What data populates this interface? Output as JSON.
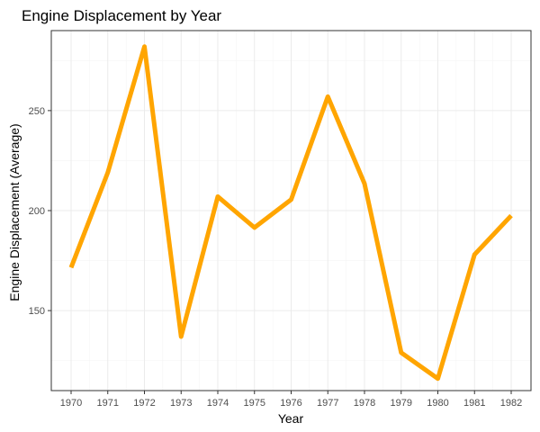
{
  "chart_data": {
    "type": "line",
    "title": "Engine Displacement by Year",
    "xlabel": "Year",
    "ylabel": "Engine Displacement (Average)",
    "x": [
      "1970",
      "1971",
      "1972",
      "1973",
      "1974",
      "1975",
      "1976",
      "1977",
      "1978",
      "1979",
      "1980",
      "1981",
      "1982"
    ],
    "series": [
      {
        "values": [
          171.5,
          219,
          282,
          137,
          207,
          191.5,
          205.5,
          257,
          213.5,
          129,
          116,
          178,
          197.5
        ]
      }
    ],
    "ylim": [
      110,
      290
    ],
    "yticks": [
      150,
      200,
      250
    ],
    "grid": true,
    "legend": "none",
    "theme": "bw",
    "line_color": "#FFA500",
    "panel_border_color": "#333333",
    "grid_major_color": "#EBEBEB",
    "grid_minor_color": "#F5F5F5"
  }
}
